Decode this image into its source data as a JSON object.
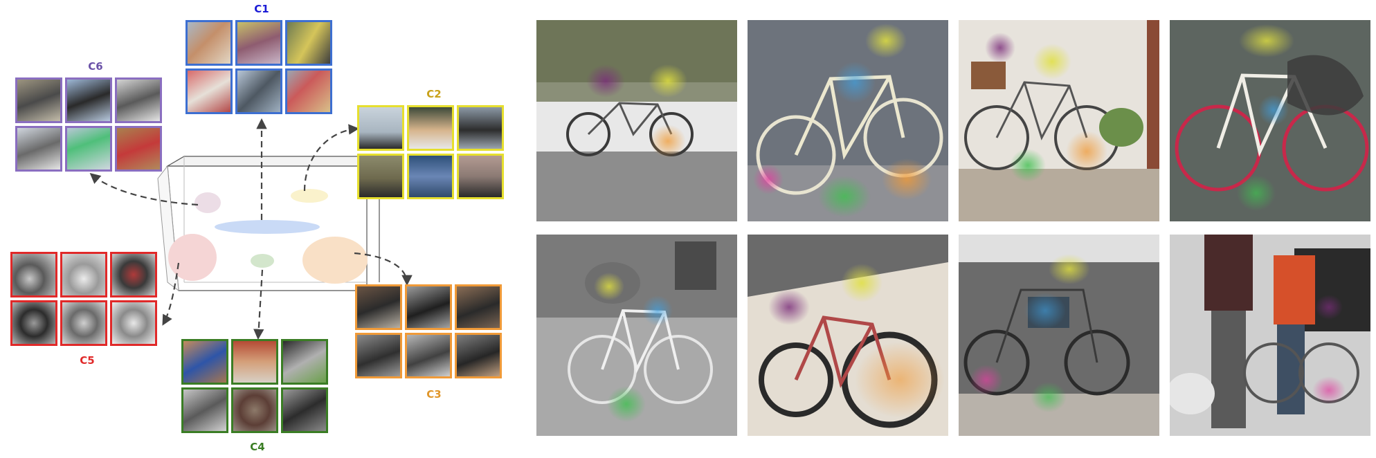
{
  "clusters": {
    "c1": {
      "label": "C1",
      "color": "#3d6fd1",
      "fill": "#dce6f5"
    },
    "c2": {
      "label": "C2",
      "color": "#e6df2e",
      "fill": "#f8f5cf"
    },
    "c3": {
      "label": "C3",
      "color": "#f09a38",
      "fill": "#f8e2c8"
    },
    "c4": {
      "label": "C4",
      "color": "#3a7d24",
      "fill": "#cfe3c7"
    },
    "c5": {
      "label": "C5",
      "color": "#e02929",
      "fill": "#f4cfcf"
    },
    "c6": {
      "label": "C6",
      "color": "#8a6ec0",
      "fill": "#e4dcef"
    }
  },
  "label_colors": {
    "c1": "#1b1bd6",
    "c2": "#c9a21a",
    "c3": "#e0962a",
    "c4": "#3a7d24",
    "c5": "#e02929",
    "c6": "#6b52a8"
  }
}
